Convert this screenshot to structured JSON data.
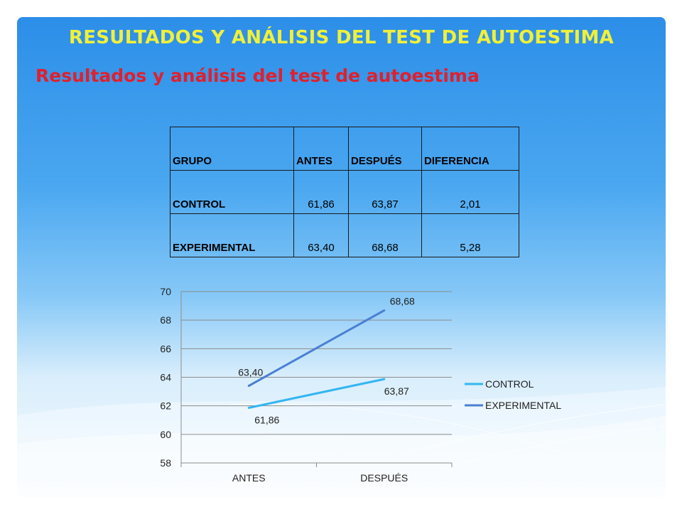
{
  "slide": {
    "title": "RESULTADOS Y ANÁLISIS DEL TEST DE AUTOESTIMA",
    "subtitle": "Resultados y análisis del test de autoestima"
  },
  "table": {
    "headers": [
      "GRUPO",
      "ANTES",
      "DESPUÉS",
      "DIFERENCIA"
    ],
    "rows": [
      [
        "CONTROL",
        "61,86",
        "63,87",
        "2,01"
      ],
      [
        "EXPERIMENTAL",
        "63,40",
        "68,68",
        "5,28"
      ]
    ]
  },
  "chart_data": {
    "type": "line",
    "categories": [
      "ANTES",
      "DESPUÉS"
    ],
    "series": [
      {
        "name": "CONTROL",
        "values": [
          61.86,
          63.87
        ],
        "labels": [
          "61,86",
          "63,87"
        ],
        "color": "#33b5f2"
      },
      {
        "name": "EXPERIMENTAL",
        "values": [
          63.4,
          68.68
        ],
        "labels": [
          "63,40",
          "68,68"
        ],
        "color": "#4a7fd4"
      }
    ],
    "ylim": [
      58,
      70
    ],
    "yticks": [
      58,
      60,
      62,
      64,
      66,
      68,
      70
    ],
    "grid": true,
    "legend": "right"
  }
}
